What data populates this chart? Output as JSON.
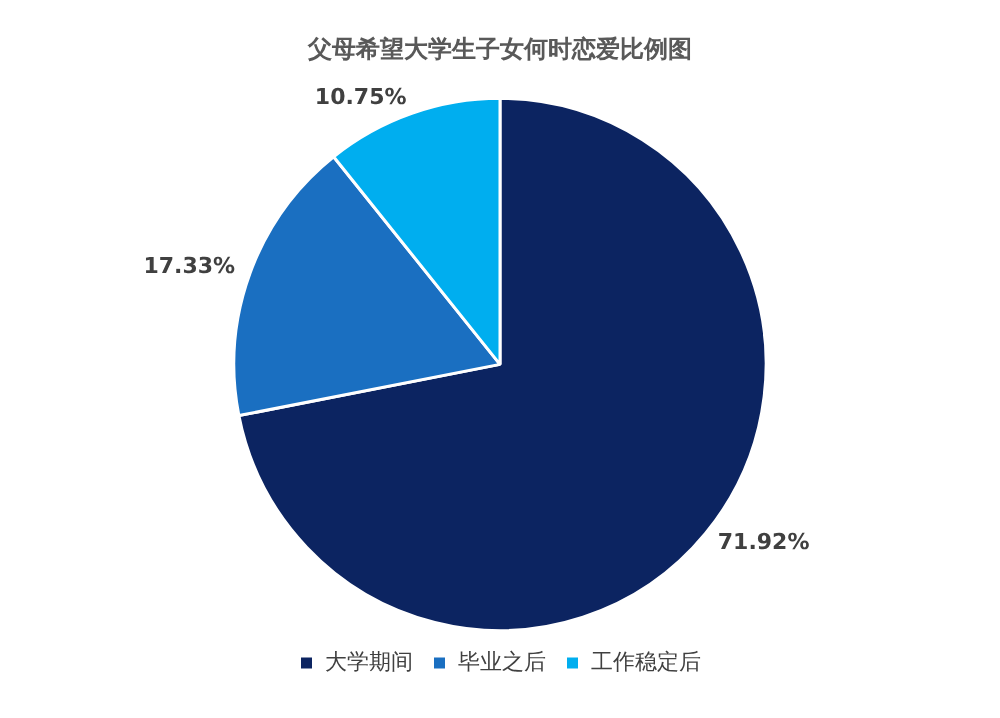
{
  "chart_data": {
    "type": "pie",
    "title": "父母希望大学生子女何时恋爱比例图",
    "categories": [
      "大学期间",
      "毕业之后",
      "工作稳定后"
    ],
    "values": [
      71.92,
      17.33,
      10.75
    ],
    "colors": [
      "#0c2461",
      "#1a6fc1",
      "#00aeef"
    ],
    "value_labels": [
      "71.92%",
      "17.33%",
      "10.75%"
    ],
    "legend": "bottom"
  }
}
